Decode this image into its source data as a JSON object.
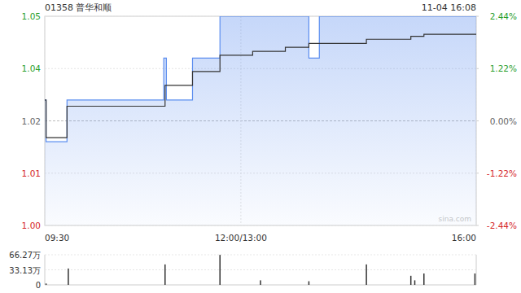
{
  "chart_data": [
    {
      "type": "line",
      "title": "01358 普华和顺",
      "subtitle": "11-04 16:08",
      "annotations": [
        "sina.com"
      ],
      "grid": true,
      "xlim": [
        0,
        330
      ],
      "xticks": [
        {
          "value": 0,
          "label": "09:30"
        },
        {
          "value": 150,
          "label": "12:00/13:00"
        },
        {
          "value": 330,
          "label": "16:00"
        }
      ],
      "ylim": [
        1.0,
        1.05
      ],
      "yticks": [
        {
          "value": 1.0,
          "label": "1.00"
        },
        {
          "value": 1.0125,
          "label": "1.01"
        },
        {
          "value": 1.025,
          "label": "1.02"
        },
        {
          "value": 1.0375,
          "label": "1.04"
        },
        {
          "value": 1.05,
          "label": "1.05"
        }
      ],
      "y2lim": [
        -2.44,
        2.44
      ],
      "y2ticks": [
        {
          "value": -2.44,
          "label": "-2.44%"
        },
        {
          "value": -1.22,
          "label": "-1.22%"
        },
        {
          "value": 0,
          "label": "0.00%"
        },
        {
          "value": 1.22,
          "label": "1.22%"
        },
        {
          "value": 2.44,
          "label": "2.44%"
        }
      ],
      "series": [
        {
          "type": "area",
          "line_style": "step",
          "color": "#5b8def",
          "x": [
            0,
            1,
            17,
            91,
            93,
            113,
            134,
            202,
            210,
            330
          ],
          "values": [
            1.03,
            1.02,
            1.03,
            1.04,
            1.03,
            1.04,
            1.05,
            1.04,
            1.05,
            1.05
          ]
        },
        {
          "type": "line",
          "line_style": "step",
          "color": "#333333",
          "x": [
            0,
            1,
            17,
            92,
            113,
            134,
            159,
            184,
            202,
            246,
            280,
            290,
            330
          ],
          "values": [
            1.03,
            1.021,
            1.0285,
            1.0335,
            1.0368,
            1.0407,
            1.0416,
            1.0426,
            1.0435,
            1.0445,
            1.0452,
            1.0457,
            1.0457
          ]
        }
      ]
    },
    {
      "type": "bar",
      "color": "#333333",
      "xlim": [
        0,
        330
      ],
      "x": [
        1,
        18,
        92,
        134,
        165,
        202,
        246,
        280,
        283,
        290,
        329
      ],
      "values": [
        3,
        36,
        45,
        66,
        10,
        8,
        45,
        20,
        10,
        25,
        25
      ],
      "ylim": [
        0,
        66.27
      ],
      "yticks": [
        0,
        {
          "value": 33.13,
          "label": "33.13万"
        },
        {
          "value": 66.27,
          "label": "66.27万"
        }
      ]
    }
  ]
}
